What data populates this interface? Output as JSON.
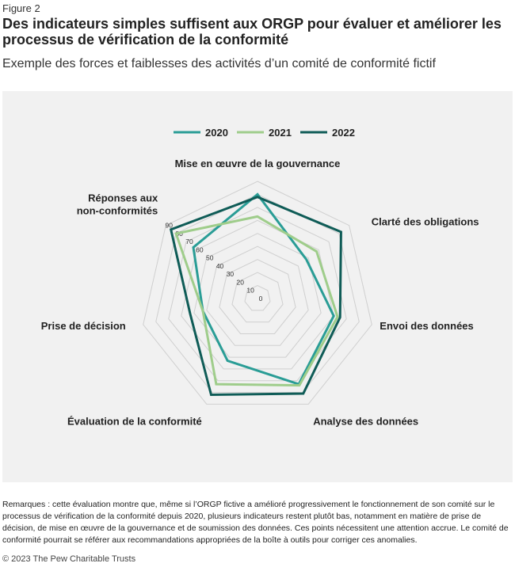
{
  "figure_label": "Figure 2",
  "title": "Des indicateurs simples suffisent aux ORGP pour évaluer et améliorer les processus de vérification de la conformité",
  "subtitle": "Exemple des forces et faiblesses des activités d’un comité de conformité fictif",
  "notes": "Remarques : cette évaluation montre que, même si l’ORGP fictive a amélioré progressivement le fonctionnement de son comité sur le processus de vérification de la conformité depuis 2020, plusieurs indicateurs restent plutôt bas, notamment en matière de prise de décision, de mise en œuvre de la gouvernance et de soumission des données. Ces points nécessitent une attention accrue. Le comité de conformité pourrait se référer aux recommandations appropriées de la boîte à outils pour corriger ces anomalies.",
  "copyright": "© 2023 The Pew Charitable Trusts",
  "chart_data": {
    "type": "radar",
    "axes": [
      [
        "Mise en œuvre de la gouvernance"
      ],
      [
        "Clarté des obligations"
      ],
      [
        "Envoi des données"
      ],
      [
        "Analyse des données"
      ],
      [
        "Évaluation de la conformité"
      ],
      [
        "Prise de décision"
      ],
      [
        "Réponses aux",
        "non-conformités"
      ]
    ],
    "rlim": [
      0,
      90
    ],
    "ticks": [
      0,
      10,
      20,
      30,
      40,
      50,
      60,
      70,
      80,
      90
    ],
    "grid": true,
    "legend_position": "top-center",
    "series": [
      {
        "name": "2020",
        "color": "#2a9d96",
        "values": [
          80,
          48,
          60,
          73,
          53,
          43,
          63
        ]
      },
      {
        "name": "2021",
        "color": "#9fcd8b",
        "values": [
          63,
          58,
          63,
          74,
          73,
          43,
          80
        ]
      },
      {
        "name": "2022",
        "color": "#0f5c57",
        "values": [
          78,
          82,
          65,
          81,
          82,
          53,
          85
        ]
      }
    ]
  }
}
